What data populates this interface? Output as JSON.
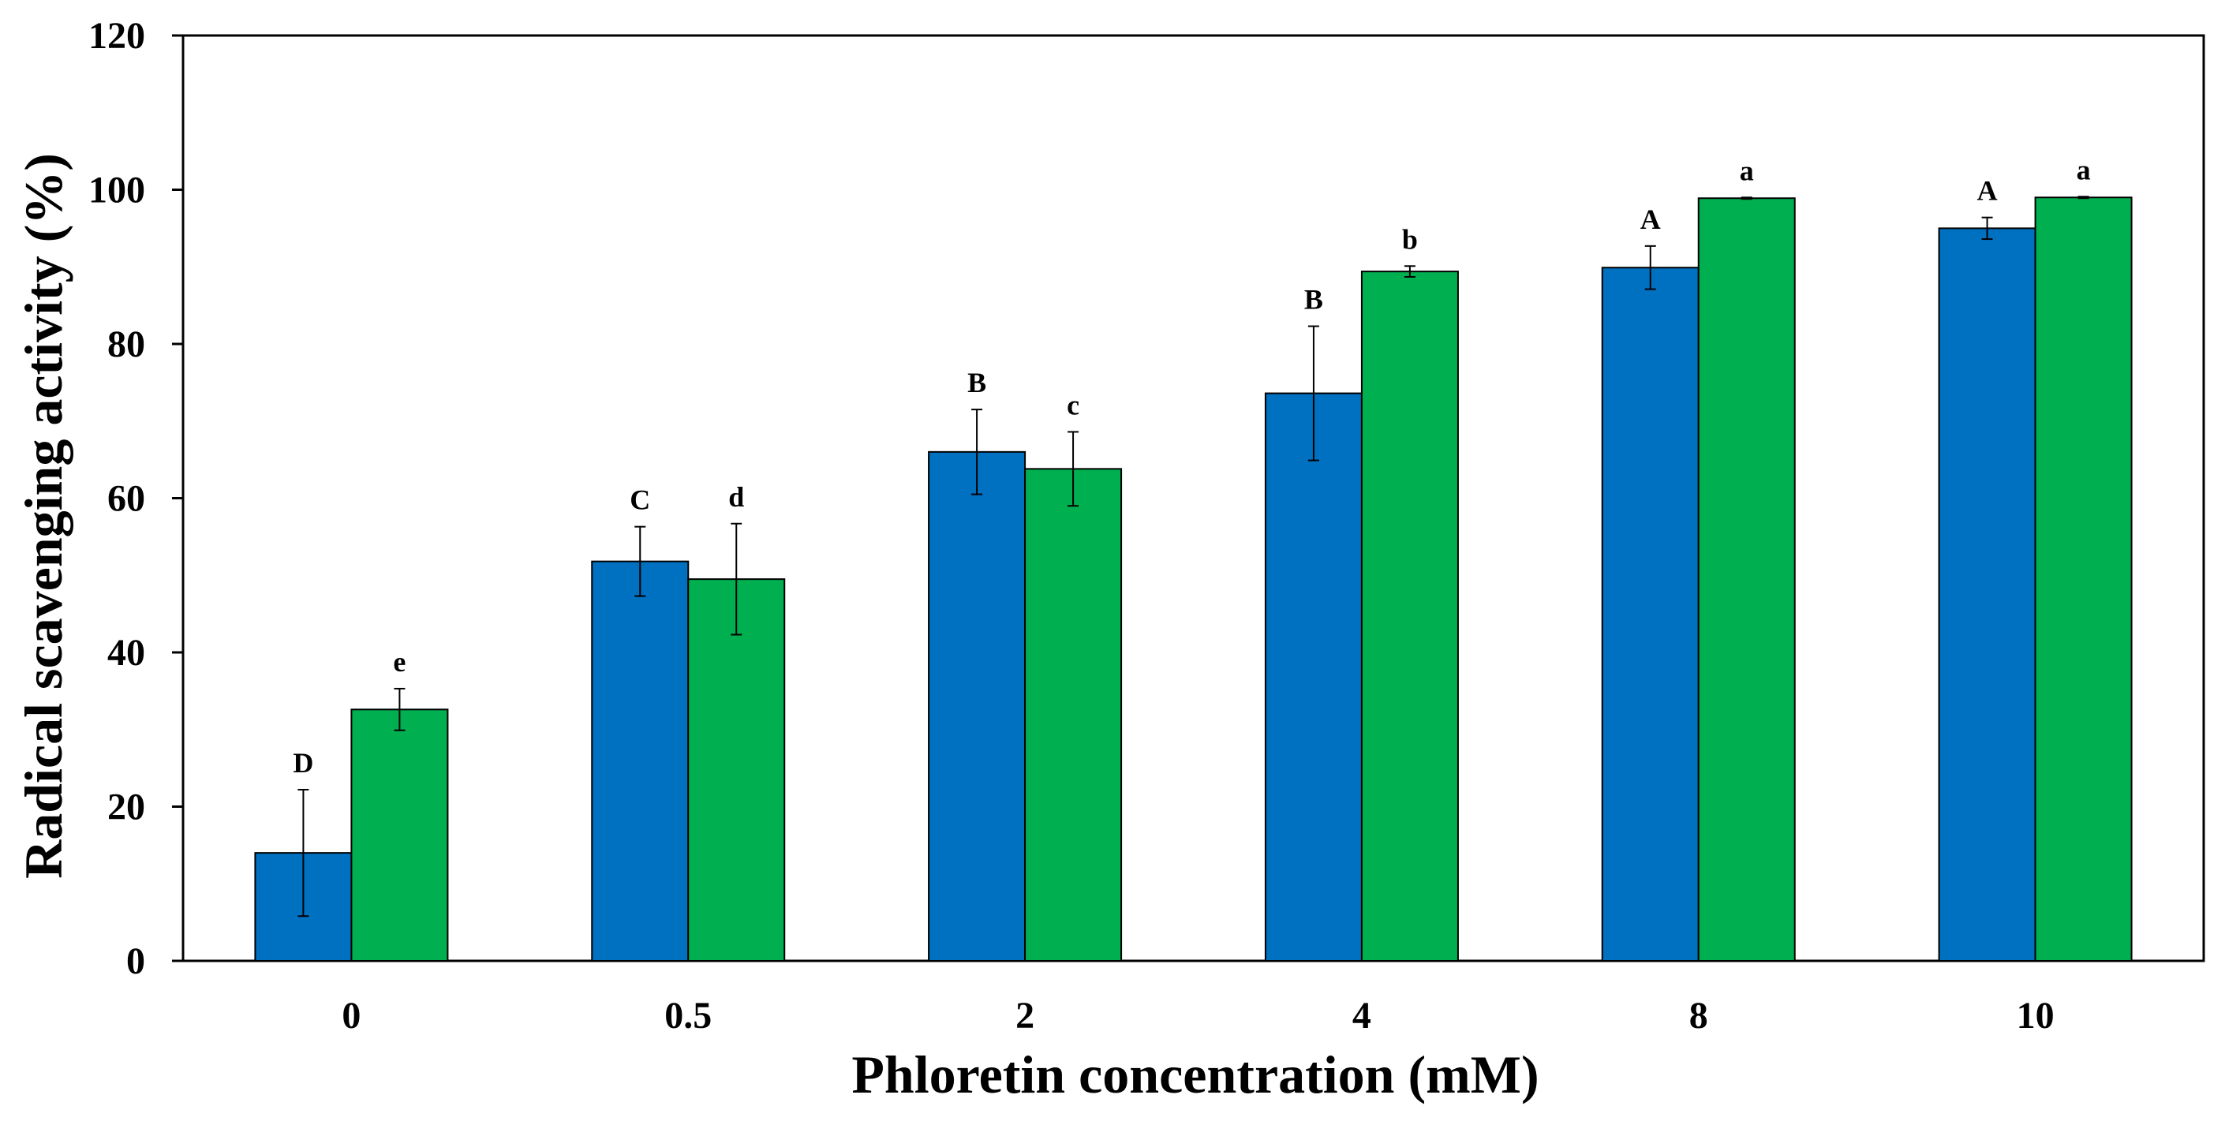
{
  "chart_data": {
    "type": "bar",
    "title": "",
    "xlabel": "Phloretin concentration (mM)",
    "ylabel": "Radical scavenging activity (%)",
    "categories": [
      "0",
      "0.5",
      "2",
      "4",
      "8",
      "10"
    ],
    "ylim": [
      0,
      120
    ],
    "yticks": [
      "0",
      "20",
      "40",
      "60",
      "80",
      "100",
      "120"
    ],
    "grid": false,
    "legend": "none",
    "series": [
      {
        "color": "#0070C0",
        "values": [
          14.0,
          51.8,
          66.0,
          73.6,
          89.9,
          95.0
        ],
        "errors": [
          8.2,
          4.5,
          5.5,
          8.7,
          2.8,
          1.4
        ],
        "labels": [
          "D",
          "C",
          "B",
          "B",
          "A",
          "A"
        ]
      },
      {
        "color": "#00B050",
        "values": [
          32.6,
          49.5,
          63.8,
          89.4,
          98.9,
          99.0
        ],
        "errors": [
          2.7,
          7.2,
          4.8,
          0.7,
          0.1,
          0.1
        ],
        "labels": [
          "e",
          "d",
          "c",
          "b",
          "a",
          "a"
        ]
      }
    ]
  }
}
